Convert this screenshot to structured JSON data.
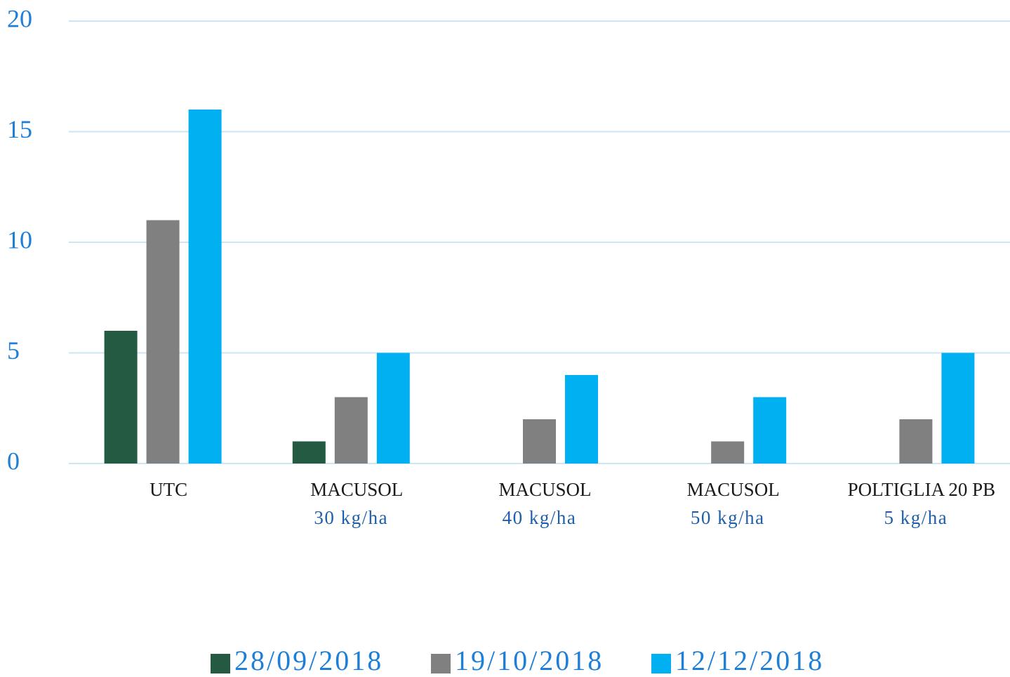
{
  "chart_data": {
    "type": "bar",
    "categories": [
      [
        "UTC"
      ],
      [
        "MACUSOL",
        "30 kg/ha"
      ],
      [
        "MACUSOL",
        "40 kg/ha"
      ],
      [
        "MACUSOL",
        "50 kg/ha"
      ],
      [
        "POLTIGLIA 20 PB",
        "5 kg/ha"
      ]
    ],
    "series": [
      {
        "name": "28/09/2018",
        "color": "#245a41",
        "values": [
          6,
          1,
          0,
          0,
          0
        ]
      },
      {
        "name": "19/10/2018",
        "color": "#808080",
        "values": [
          11,
          3,
          2,
          1,
          2
        ]
      },
      {
        "name": "12/12/2018",
        "color": "#00b0f0",
        "values": [
          16,
          5,
          4,
          3,
          5
        ]
      }
    ],
    "ylim": [
      0,
      20
    ],
    "yticks": [
      0,
      5,
      10,
      15,
      20
    ],
    "grid": true,
    "legend": "bottom"
  }
}
